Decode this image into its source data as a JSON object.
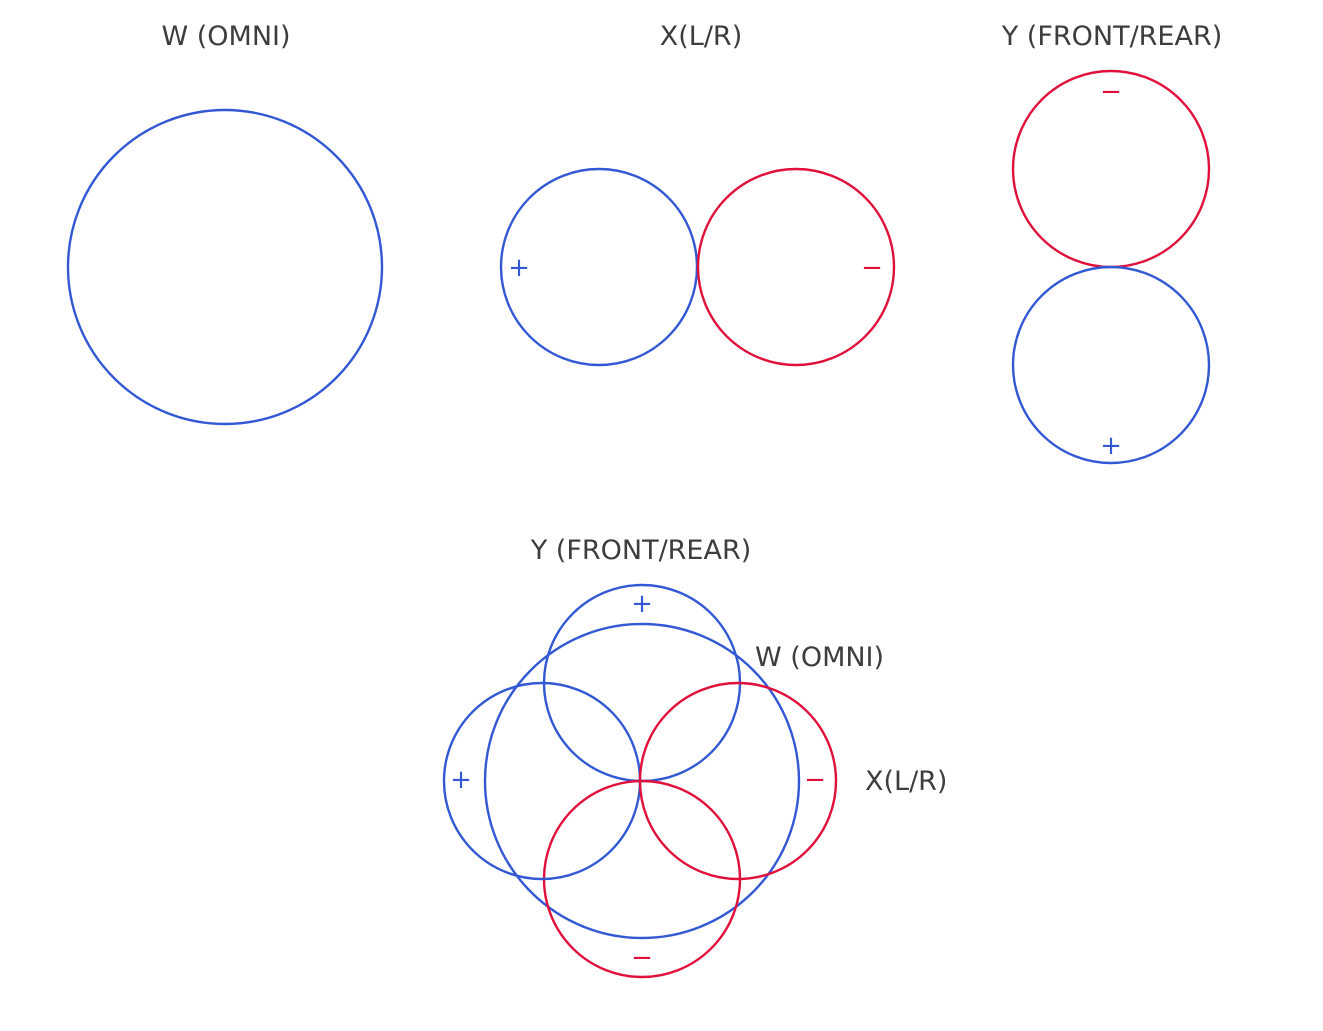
{
  "colors": {
    "positive": "#3358d4",
    "negative": "#e0103a",
    "text": "#3d3d3d"
  },
  "top": {
    "w_title": "W (OMNI)",
    "x_title": "X(L/R)",
    "y_title": "Y (FRONT/REAR)"
  },
  "combined": {
    "y_label": "Y (FRONT/REAR)",
    "w_label": "W (OMNI)",
    "x_label": "X(L/R)"
  },
  "signs": {
    "plus": "+",
    "minus": "−"
  }
}
